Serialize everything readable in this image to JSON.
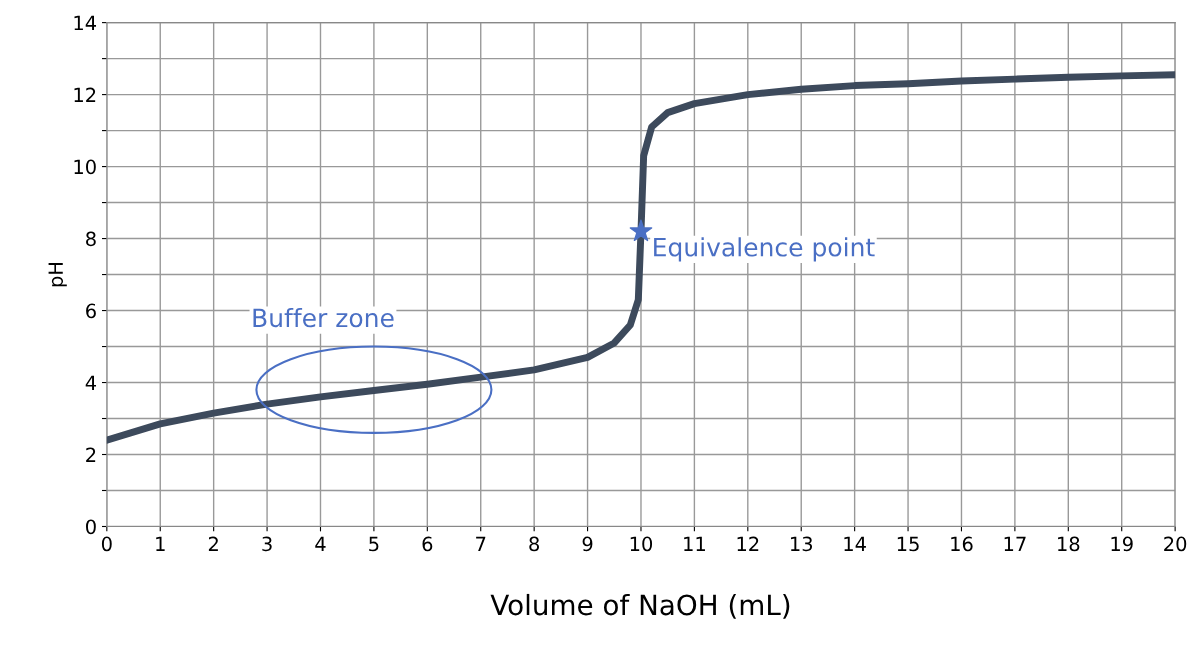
{
  "chart_data": {
    "type": "line",
    "xlabel": "Volume of NaOH (mL)",
    "ylabel": "pH",
    "xlim": [
      0,
      20
    ],
    "xticks": [
      0,
      1,
      2,
      3,
      4,
      5,
      6,
      7,
      8,
      9,
      10,
      11,
      12,
      13,
      14,
      15,
      16,
      17,
      18,
      19,
      20
    ],
    "ylim": [
      0,
      14
    ],
    "yticks": [
      0,
      {
        "value": 1,
        "label": null
      },
      2,
      {
        "value": 3,
        "label": null
      },
      4,
      {
        "value": 5,
        "label": null
      },
      6,
      {
        "value": 7,
        "label": null
      },
      8,
      {
        "value": 9,
        "label": null
      },
      10,
      {
        "value": 11,
        "label": null
      },
      12,
      {
        "value": 13,
        "label": null
      },
      14
    ],
    "grid": true,
    "marker": "none",
    "line_style": "solid",
    "series": [
      {
        "color": "#3d4a5c",
        "x": [
          0,
          1,
          2,
          3,
          4,
          5,
          6,
          7,
          8,
          9,
          9.5,
          9.8,
          9.95,
          10,
          10.05,
          10.2,
          10.5,
          11,
          12,
          13,
          14,
          15,
          16,
          17,
          18,
          19,
          20
        ],
        "values": [
          2.4,
          2.85,
          3.15,
          3.4,
          3.6,
          3.78,
          3.95,
          4.15,
          4.35,
          4.7,
          5.1,
          5.6,
          6.3,
          8.2,
          10.3,
          11.1,
          11.5,
          11.75,
          12.0,
          12.15,
          12.25,
          12.3,
          12.38,
          12.43,
          12.48,
          12.52,
          12.55
        ]
      },
      {
        "type": "scatter",
        "color": "#4a6fc4",
        "marker": "star",
        "x": [
          10
        ],
        "values": [
          8.2
        ]
      }
    ],
    "annotations": [
      {
        "text": "Buffer zone",
        "x": 5,
        "y": 3.8
      },
      {
        "text": "Equivalence point",
        "x": 10,
        "y": 8.2
      }
    ]
  }
}
